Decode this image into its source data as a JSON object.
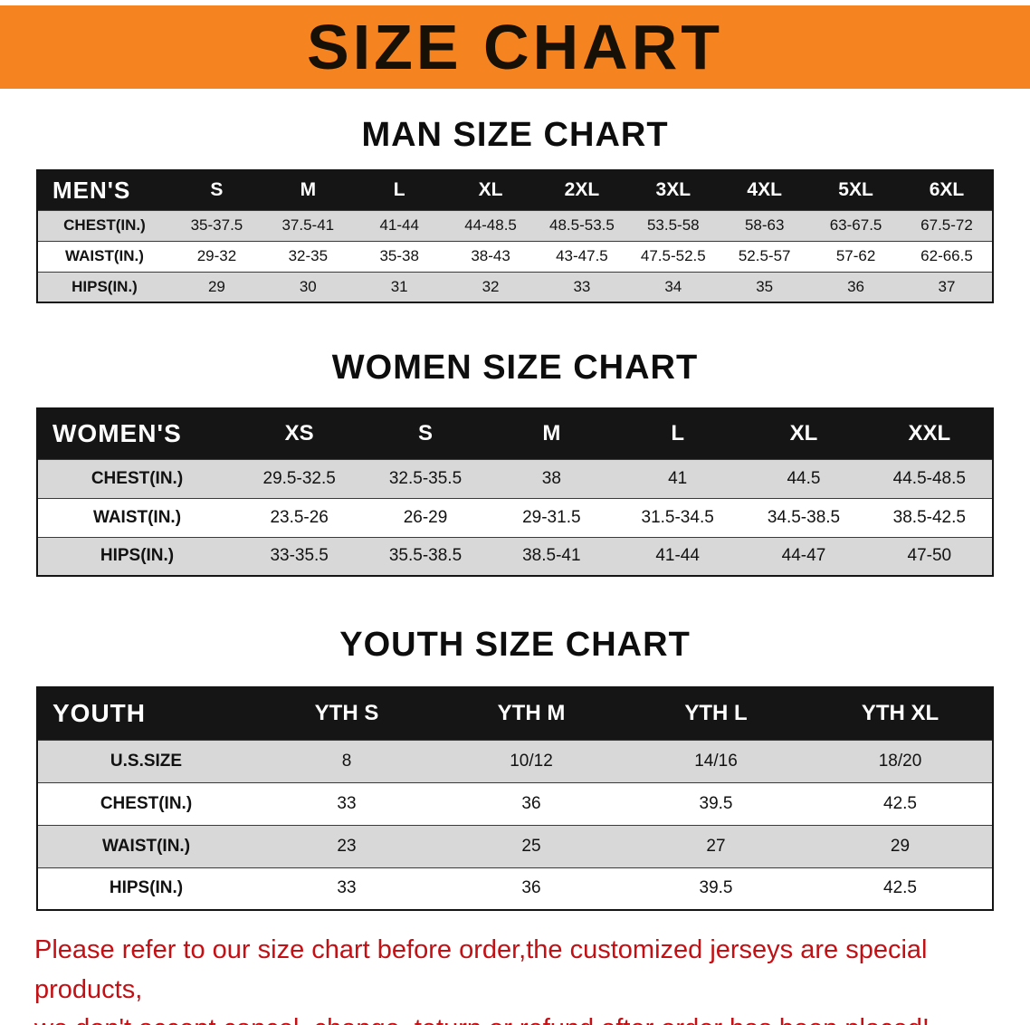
{
  "banner": {
    "title": "SIZE CHART"
  },
  "colors": {
    "banner_bg": "#F5831F",
    "title_text": "#161006",
    "table_header_bg": "#151515",
    "row_stripe": "#D8D8D8",
    "disclaimer_text": "#C31014"
  },
  "sections": [
    {
      "heading": "MAN SIZE CHART",
      "table": {
        "header": [
          "MEN'S",
          "S",
          "M",
          "L",
          "XL",
          "2XL",
          "3XL",
          "4XL",
          "5XL",
          "6XL"
        ],
        "rows": [
          [
            "CHEST(IN.)",
            "35-37.5",
            "37.5-41",
            "41-44",
            "44-48.5",
            "48.5-53.5",
            "53.5-58",
            "58-63",
            "63-67.5",
            "67.5-72"
          ],
          [
            "WAIST(IN.)",
            "29-32",
            "32-35",
            "35-38",
            "38-43",
            "43-47.5",
            "47.5-52.5",
            "52.5-57",
            "57-62",
            "62-66.5"
          ],
          [
            "HIPS(IN.)",
            "29",
            "30",
            "31",
            "32",
            "33",
            "34",
            "35",
            "36",
            "37"
          ]
        ]
      }
    },
    {
      "heading": "WOMEN SIZE CHART",
      "table": {
        "header": [
          "WOMEN'S",
          "XS",
          "S",
          "M",
          "L",
          "XL",
          "XXL"
        ],
        "rows": [
          [
            "CHEST(IN.)",
            "29.5-32.5",
            "32.5-35.5",
            "38",
            "41",
            "44.5",
            "44.5-48.5"
          ],
          [
            "WAIST(IN.)",
            "23.5-26",
            "26-29",
            "29-31.5",
            "31.5-34.5",
            "34.5-38.5",
            "38.5-42.5"
          ],
          [
            "HIPS(IN.)",
            "33-35.5",
            "35.5-38.5",
            "38.5-41",
            "41-44",
            "44-47",
            "47-50"
          ]
        ]
      }
    },
    {
      "heading": "YOUTH SIZE CHART",
      "table": {
        "header": [
          "YOUTH",
          "YTH S",
          "YTH M",
          "YTH L",
          "YTH XL"
        ],
        "rows": [
          [
            "U.S.SIZE",
            "8",
            "10/12",
            "14/16",
            "18/20"
          ],
          [
            "CHEST(IN.)",
            "33",
            "36",
            "39.5",
            "42.5"
          ],
          [
            "WAIST(IN.)",
            "23",
            "25",
            "27",
            "29"
          ],
          [
            "HIPS(IN.)",
            "33",
            "36",
            "39.5",
            "42.5"
          ]
        ]
      }
    }
  ],
  "disclaimer": {
    "line1": "Please refer to our size chart before order,the customized jerseys are special products,",
    "line2": "we don't accept cancel, change, teturn or refund after order has been placed!"
  }
}
